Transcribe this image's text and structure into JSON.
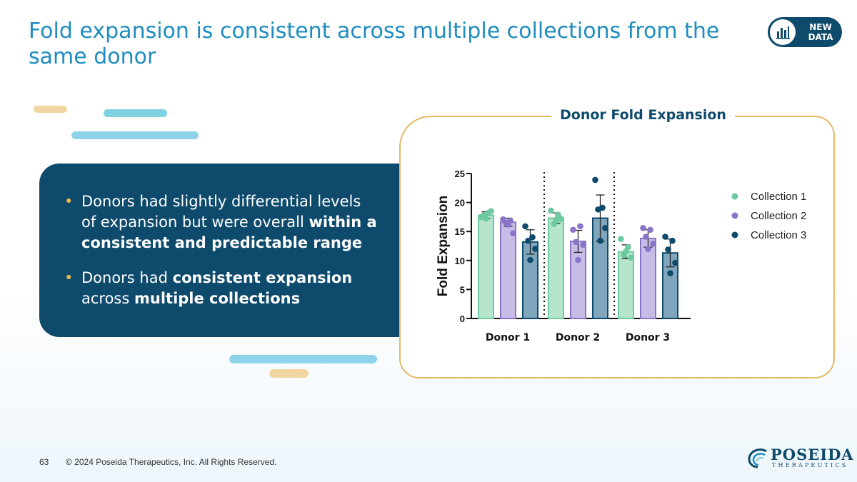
{
  "slide": {
    "title": "Fold expansion is consistent across multiple collections from the same donor",
    "badge": {
      "line1": "NEW",
      "line2": "DATA",
      "icon": "bar-chart-icon"
    },
    "bullets": [
      {
        "parts": [
          {
            "text": "Donors had slightly differential levels of expansion but were overall ",
            "bold": false
          },
          {
            "text": "within a consistent and predictable range",
            "bold": true
          }
        ]
      },
      {
        "parts": [
          {
            "text": "Donors had ",
            "bold": false
          },
          {
            "text": "consistent expansion",
            "bold": true
          },
          {
            "text": " across ",
            "bold": false
          },
          {
            "text": "multiple collections",
            "bold": true
          }
        ]
      }
    ],
    "footer": {
      "page_number": "63",
      "copyright": "© 2024 Poseida Therapeutics, Inc. All Rights Reserved."
    },
    "logo": {
      "name": "POSEIDA",
      "sub": "THERAPEUTICS"
    }
  },
  "colors": {
    "title": "#1f8dbf",
    "panel": "#0e4a6c",
    "frame": "#e5b968",
    "collection1": "#6cc9a0",
    "collection2": "#8a74c7",
    "collection3": "#0d4a6b",
    "fill1": "#b6e4cc",
    "fill2": "#c6bce6",
    "fill3": "#7fa6bd"
  },
  "chart_data": {
    "type": "bar",
    "title": "Donor Fold Expansion",
    "ylabel": "Fold Expansion",
    "xlabel": "",
    "ylim": [
      0,
      25
    ],
    "yticks": [
      0,
      5,
      10,
      15,
      20,
      25
    ],
    "categories": [
      "Donor 1",
      "Donor 2",
      "Donor 3"
    ],
    "legend_position": "right",
    "series": [
      {
        "name": "Collection 1",
        "values": [
          17.8,
          17.3,
          11.5
        ],
        "error": [
          0.6,
          0.9,
          1.2
        ],
        "points": [
          [
            17.5,
            18.2,
            17.8,
            18.5,
            17.2
          ],
          [
            18.6,
            17.9,
            16.3,
            17.2,
            16.9
          ],
          [
            13.7,
            12.3,
            11.0,
            10.5,
            11.6
          ]
        ]
      },
      {
        "name": "Collection 2",
        "values": [
          16.6,
          13.3,
          13.8
        ],
        "error": [
          0.7,
          1.9,
          1.5
        ],
        "points": [
          [
            17.1,
            16.9,
            16.5,
            14.7,
            16.2
          ],
          [
            15.3,
            15.9,
            13.2,
            12.7,
            10.1
          ],
          [
            15.6,
            15.3,
            14.1,
            12.9,
            12.0
          ]
        ]
      },
      {
        "name": "Collection 3",
        "values": [
          13.2,
          17.3,
          11.3
        ],
        "error": [
          2.1,
          4.0,
          2.4
        ],
        "points": [
          [
            15.9,
            14.0,
            13.4,
            12.0,
            10.1
          ],
          [
            23.9,
            19.1,
            18.8,
            15.6,
            13.4
          ],
          [
            14.1,
            13.4,
            11.9,
            9.6,
            7.8
          ]
        ]
      }
    ]
  }
}
